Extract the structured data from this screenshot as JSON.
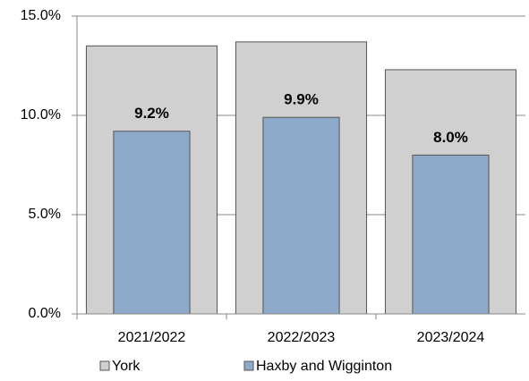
{
  "chart_data": {
    "type": "bar",
    "overlap": true,
    "categories": [
      "2021/2022",
      "2022/2023",
      "2023/2024"
    ],
    "series": [
      {
        "name": "York",
        "color": "#d0d0d0",
        "values": [
          13.5,
          13.7,
          12.3
        ]
      },
      {
        "name": "Haxby and Wigginton",
        "color": "#8eaacb",
        "values": [
          9.2,
          9.9,
          8.0
        ],
        "value_labels": [
          "9.2%",
          "9.9%",
          "8.0%"
        ]
      }
    ],
    "ylim": [
      0,
      15
    ],
    "yticks": [
      {
        "value": 0,
        "label": "0.0%"
      },
      {
        "value": 5,
        "label": "5.0%"
      },
      {
        "value": 10,
        "label": "10.0%"
      },
      {
        "value": 15,
        "label": "15.0%"
      }
    ],
    "grid": true,
    "legend": "bottom"
  }
}
